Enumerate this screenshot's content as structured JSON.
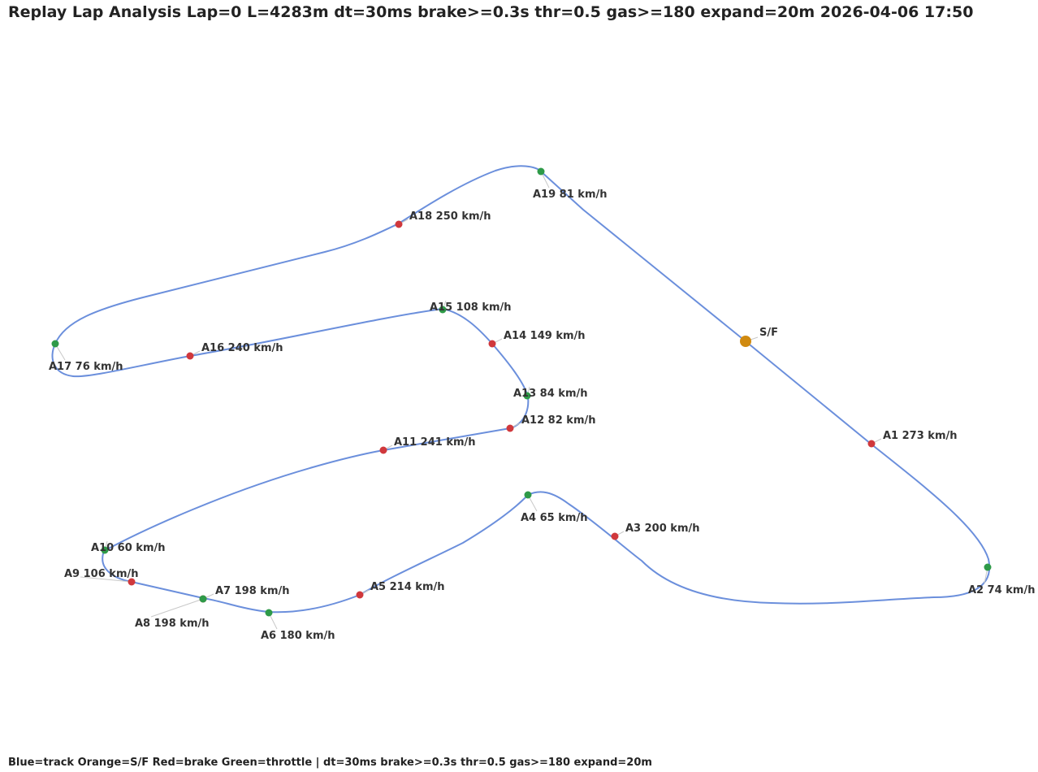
{
  "header": {
    "title": "Replay Lap Analysis  Lap=0  L=4283m  dt=30ms brake>=0.3s thr=0.5 gas>=180 expand=20m  2026-04-06 17:50"
  },
  "footer": {
    "legend": "Blue=track Orange=S/F Red=brake Green=throttle  |  dt=30ms brake>=0.3s thr=0.5 gas>=180 expand=20m"
  },
  "colors": {
    "track": "#6b8fdc",
    "start_finish": "#d08a10",
    "brake": "#d0383c",
    "throttle": "#2e9a48"
  },
  "start_finish": {
    "label": "S/F"
  },
  "markers": [
    {
      "id": "A1",
      "label": "A1 273 km/h",
      "kind": "brake"
    },
    {
      "id": "A2",
      "label": "A2 74 km/h",
      "kind": "throttle"
    },
    {
      "id": "A3",
      "label": "A3 200 km/h",
      "kind": "brake"
    },
    {
      "id": "A4",
      "label": "A4 65 km/h",
      "kind": "throttle"
    },
    {
      "id": "A5",
      "label": "A5 214 km/h",
      "kind": "brake"
    },
    {
      "id": "A6",
      "label": "A6 180 km/h",
      "kind": "throttle"
    },
    {
      "id": "A7",
      "label": "A7 198 km/h",
      "kind": "brake"
    },
    {
      "id": "A8",
      "label": "A8 198 km/h",
      "kind": "throttle"
    },
    {
      "id": "A9",
      "label": "A9 106 km/h",
      "kind": "brake"
    },
    {
      "id": "A10",
      "label": "A10 60 km/h",
      "kind": "throttle"
    },
    {
      "id": "A11",
      "label": "A11 241 km/h",
      "kind": "brake"
    },
    {
      "id": "A12",
      "label": "A12 82 km/h",
      "kind": "brake"
    },
    {
      "id": "A13",
      "label": "A13 84 km/h",
      "kind": "throttle"
    },
    {
      "id": "A14",
      "label": "A14 149 km/h",
      "kind": "brake"
    },
    {
      "id": "A15",
      "label": "A15 108 km/h",
      "kind": "throttle"
    },
    {
      "id": "A16",
      "label": "A16 240 km/h",
      "kind": "brake"
    },
    {
      "id": "A17",
      "label": "A17 76 km/h",
      "kind": "throttle"
    },
    {
      "id": "A18",
      "label": "A18 250 km/h",
      "kind": "brake"
    },
    {
      "id": "A19",
      "label": "A19 81 km/h",
      "kind": "throttle"
    }
  ]
}
